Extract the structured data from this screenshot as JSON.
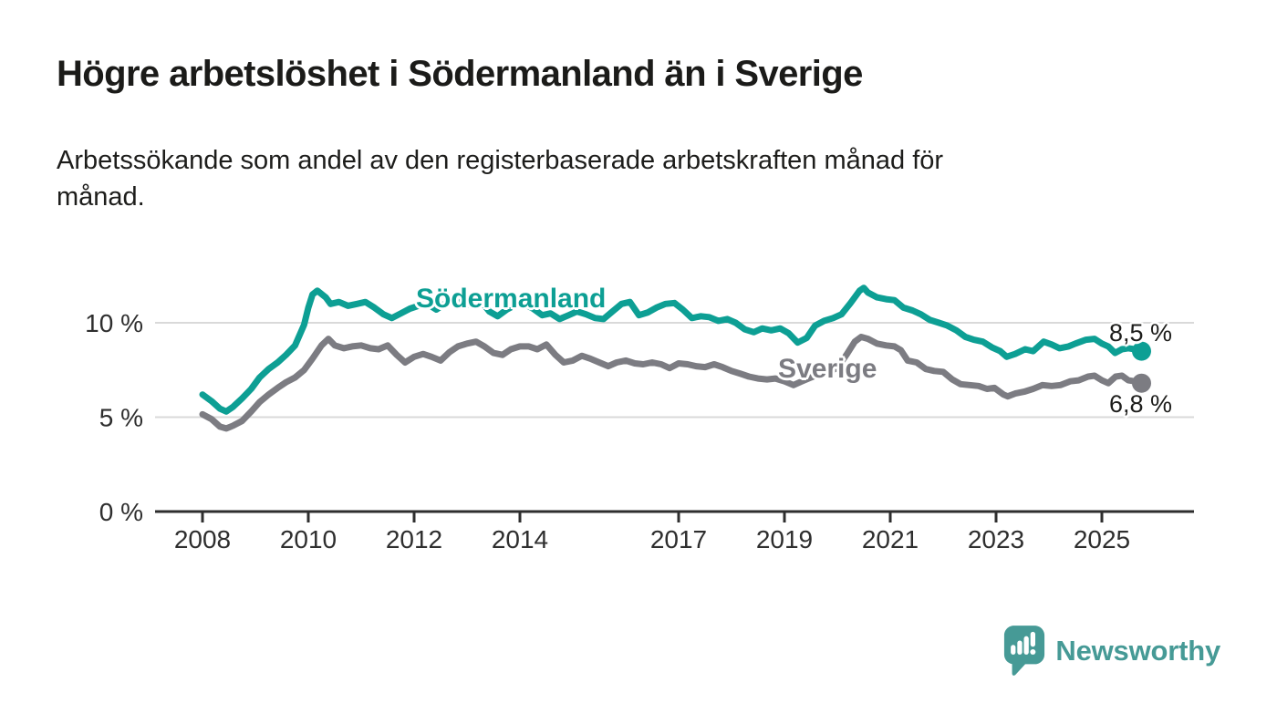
{
  "header": {
    "title": "Högre arbetslöshet i Södermanland än i Sverige",
    "subtitle_lines": [
      "Arbetssökande som andel av den registerbaserade arbetskraften månad för",
      "månad."
    ]
  },
  "footer": {
    "logo_text": "Newsworthy",
    "logo_color": "#469a96"
  },
  "chart_data": {
    "type": "line",
    "title": "Högre arbetslöshet i Södermanland än i Sverige",
    "xlabel": "",
    "ylabel": "",
    "x_unit": "year (monthly points)",
    "xlim": [
      2007.1,
      2026.8
    ],
    "ylim": [
      0,
      13.6
    ],
    "grid": "horizontal",
    "legend_position": "inline-labels",
    "grid_color": "#d9d9d9",
    "axis_color": "#2e2e2e",
    "x_ticks": [
      2008,
      2010,
      2012,
      2014,
      2017,
      2019,
      2021,
      2023,
      2025
    ],
    "y_ticks": [
      {
        "value": 0,
        "label": "0 %"
      },
      {
        "value": 5,
        "label": "5 %"
      },
      {
        "value": 10,
        "label": "10 %"
      }
    ],
    "series": [
      {
        "id": "sodermanland",
        "name": "Södermanland",
        "color": "#0d9f94",
        "end_label": "8,5 %",
        "end_value": 8.5,
        "points": [
          [
            2008.0,
            6.2
          ],
          [
            2008.17,
            5.85
          ],
          [
            2008.33,
            5.45
          ],
          [
            2008.45,
            5.3
          ],
          [
            2008.58,
            5.55
          ],
          [
            2008.75,
            6.0
          ],
          [
            2008.92,
            6.5
          ],
          [
            2009.08,
            7.1
          ],
          [
            2009.25,
            7.55
          ],
          [
            2009.42,
            7.9
          ],
          [
            2009.58,
            8.3
          ],
          [
            2009.75,
            8.8
          ],
          [
            2009.92,
            9.9
          ],
          [
            2010.0,
            10.8
          ],
          [
            2010.08,
            11.5
          ],
          [
            2010.17,
            11.7
          ],
          [
            2010.33,
            11.35
          ],
          [
            2010.42,
            11.0
          ],
          [
            2010.58,
            11.1
          ],
          [
            2010.75,
            10.9
          ],
          [
            2010.92,
            11.0
          ],
          [
            2011.08,
            11.1
          ],
          [
            2011.25,
            10.8
          ],
          [
            2011.42,
            10.45
          ],
          [
            2011.58,
            10.25
          ],
          [
            2011.75,
            10.5
          ],
          [
            2011.92,
            10.75
          ],
          [
            2012.08,
            10.9
          ],
          [
            2012.25,
            11.0
          ],
          [
            2012.42,
            10.7
          ],
          [
            2012.58,
            11.0
          ],
          [
            2012.75,
            11.15
          ],
          [
            2012.92,
            11.05
          ],
          [
            2013.08,
            10.95
          ],
          [
            2013.25,
            11.2
          ],
          [
            2013.42,
            10.6
          ],
          [
            2013.58,
            10.35
          ],
          [
            2013.75,
            10.7
          ],
          [
            2013.92,
            10.95
          ],
          [
            2014.08,
            11.0
          ],
          [
            2014.25,
            10.75
          ],
          [
            2014.42,
            10.4
          ],
          [
            2014.58,
            10.5
          ],
          [
            2014.75,
            10.2
          ],
          [
            2014.92,
            10.4
          ],
          [
            2015.08,
            10.6
          ],
          [
            2015.25,
            10.45
          ],
          [
            2015.42,
            10.25
          ],
          [
            2015.58,
            10.2
          ],
          [
            2015.75,
            10.6
          ],
          [
            2015.92,
            11.0
          ],
          [
            2016.08,
            11.1
          ],
          [
            2016.25,
            10.4
          ],
          [
            2016.42,
            10.55
          ],
          [
            2016.58,
            10.8
          ],
          [
            2016.75,
            11.0
          ],
          [
            2016.92,
            11.05
          ],
          [
            2017.08,
            10.7
          ],
          [
            2017.25,
            10.25
          ],
          [
            2017.42,
            10.35
          ],
          [
            2017.58,
            10.3
          ],
          [
            2017.75,
            10.1
          ],
          [
            2017.92,
            10.2
          ],
          [
            2018.08,
            10.0
          ],
          [
            2018.25,
            9.65
          ],
          [
            2018.42,
            9.5
          ],
          [
            2018.58,
            9.7
          ],
          [
            2018.75,
            9.6
          ],
          [
            2018.92,
            9.7
          ],
          [
            2019.08,
            9.45
          ],
          [
            2019.25,
            8.95
          ],
          [
            2019.42,
            9.2
          ],
          [
            2019.58,
            9.85
          ],
          [
            2019.75,
            10.1
          ],
          [
            2019.92,
            10.25
          ],
          [
            2020.08,
            10.45
          ],
          [
            2020.25,
            11.05
          ],
          [
            2020.42,
            11.7
          ],
          [
            2020.5,
            11.85
          ],
          [
            2020.58,
            11.6
          ],
          [
            2020.75,
            11.35
          ],
          [
            2020.92,
            11.25
          ],
          [
            2021.08,
            11.2
          ],
          [
            2021.25,
            10.8
          ],
          [
            2021.42,
            10.65
          ],
          [
            2021.58,
            10.45
          ],
          [
            2021.75,
            10.15
          ],
          [
            2021.92,
            10.0
          ],
          [
            2022.08,
            9.85
          ],
          [
            2022.25,
            9.6
          ],
          [
            2022.42,
            9.25
          ],
          [
            2022.58,
            9.1
          ],
          [
            2022.75,
            9.0
          ],
          [
            2022.92,
            8.7
          ],
          [
            2023.08,
            8.5
          ],
          [
            2023.2,
            8.2
          ],
          [
            2023.36,
            8.35
          ],
          [
            2023.55,
            8.6
          ],
          [
            2023.7,
            8.5
          ],
          [
            2023.9,
            9.0
          ],
          [
            2024.05,
            8.85
          ],
          [
            2024.2,
            8.65
          ],
          [
            2024.37,
            8.75
          ],
          [
            2024.5,
            8.9
          ],
          [
            2024.7,
            9.1
          ],
          [
            2024.86,
            9.15
          ],
          [
            2025.0,
            8.9
          ],
          [
            2025.12,
            8.75
          ],
          [
            2025.25,
            8.4
          ],
          [
            2025.38,
            8.6
          ],
          [
            2025.5,
            8.65
          ],
          [
            2025.62,
            8.6
          ],
          [
            2025.75,
            8.5
          ]
        ]
      },
      {
        "id": "sverige",
        "name": "Sverige",
        "color": "#7c7c82",
        "end_label": "6,8 %",
        "end_value": 6.8,
        "points": [
          [
            2008.0,
            5.15
          ],
          [
            2008.17,
            4.9
          ],
          [
            2008.33,
            4.5
          ],
          [
            2008.45,
            4.4
          ],
          [
            2008.58,
            4.55
          ],
          [
            2008.75,
            4.8
          ],
          [
            2008.92,
            5.3
          ],
          [
            2009.08,
            5.8
          ],
          [
            2009.25,
            6.2
          ],
          [
            2009.42,
            6.55
          ],
          [
            2009.58,
            6.85
          ],
          [
            2009.75,
            7.1
          ],
          [
            2009.92,
            7.5
          ],
          [
            2010.08,
            8.1
          ],
          [
            2010.25,
            8.8
          ],
          [
            2010.38,
            9.15
          ],
          [
            2010.5,
            8.8
          ],
          [
            2010.67,
            8.65
          ],
          [
            2010.83,
            8.75
          ],
          [
            2011.0,
            8.8
          ],
          [
            2011.17,
            8.65
          ],
          [
            2011.33,
            8.6
          ],
          [
            2011.5,
            8.8
          ],
          [
            2011.67,
            8.3
          ],
          [
            2011.83,
            7.9
          ],
          [
            2012.0,
            8.2
          ],
          [
            2012.17,
            8.35
          ],
          [
            2012.33,
            8.2
          ],
          [
            2012.5,
            8.0
          ],
          [
            2012.67,
            8.45
          ],
          [
            2012.83,
            8.75
          ],
          [
            2013.0,
            8.9
          ],
          [
            2013.17,
            9.0
          ],
          [
            2013.33,
            8.75
          ],
          [
            2013.5,
            8.4
          ],
          [
            2013.67,
            8.3
          ],
          [
            2013.83,
            8.6
          ],
          [
            2014.0,
            8.75
          ],
          [
            2014.17,
            8.75
          ],
          [
            2014.33,
            8.6
          ],
          [
            2014.5,
            8.85
          ],
          [
            2014.67,
            8.3
          ],
          [
            2014.83,
            7.9
          ],
          [
            2015.0,
            8.0
          ],
          [
            2015.17,
            8.25
          ],
          [
            2015.33,
            8.1
          ],
          [
            2015.5,
            7.9
          ],
          [
            2015.67,
            7.7
          ],
          [
            2015.83,
            7.9
          ],
          [
            2016.0,
            8.0
          ],
          [
            2016.17,
            7.85
          ],
          [
            2016.33,
            7.8
          ],
          [
            2016.5,
            7.9
          ],
          [
            2016.67,
            7.8
          ],
          [
            2016.83,
            7.6
          ],
          [
            2017.0,
            7.85
          ],
          [
            2017.17,
            7.8
          ],
          [
            2017.33,
            7.7
          ],
          [
            2017.5,
            7.65
          ],
          [
            2017.67,
            7.8
          ],
          [
            2017.83,
            7.65
          ],
          [
            2018.0,
            7.45
          ],
          [
            2018.17,
            7.3
          ],
          [
            2018.33,
            7.15
          ],
          [
            2018.5,
            7.05
          ],
          [
            2018.67,
            7.0
          ],
          [
            2018.83,
            7.05
          ],
          [
            2019.0,
            6.9
          ],
          [
            2019.17,
            6.7
          ],
          [
            2019.33,
            6.9
          ],
          [
            2019.5,
            7.1
          ],
          [
            2019.67,
            7.3
          ],
          [
            2019.83,
            7.4
          ],
          [
            2020.0,
            7.6
          ],
          [
            2020.17,
            8.3
          ],
          [
            2020.33,
            9.0
          ],
          [
            2020.45,
            9.25
          ],
          [
            2020.58,
            9.15
          ],
          [
            2020.75,
            8.9
          ],
          [
            2020.92,
            8.8
          ],
          [
            2021.08,
            8.75
          ],
          [
            2021.2,
            8.55
          ],
          [
            2021.33,
            8.0
          ],
          [
            2021.5,
            7.9
          ],
          [
            2021.67,
            7.55
          ],
          [
            2021.83,
            7.45
          ],
          [
            2022.0,
            7.4
          ],
          [
            2022.17,
            7.0
          ],
          [
            2022.33,
            6.75
          ],
          [
            2022.5,
            6.7
          ],
          [
            2022.67,
            6.65
          ],
          [
            2022.83,
            6.5
          ],
          [
            2022.97,
            6.55
          ],
          [
            2023.14,
            6.2
          ],
          [
            2023.22,
            6.1
          ],
          [
            2023.36,
            6.25
          ],
          [
            2023.53,
            6.35
          ],
          [
            2023.7,
            6.5
          ],
          [
            2023.88,
            6.7
          ],
          [
            2024.05,
            6.65
          ],
          [
            2024.22,
            6.7
          ],
          [
            2024.4,
            6.9
          ],
          [
            2024.56,
            6.95
          ],
          [
            2024.74,
            7.15
          ],
          [
            2024.86,
            7.2
          ],
          [
            2025.0,
            6.95
          ],
          [
            2025.12,
            6.8
          ],
          [
            2025.26,
            7.15
          ],
          [
            2025.38,
            7.2
          ],
          [
            2025.5,
            6.95
          ],
          [
            2025.62,
            6.9
          ],
          [
            2025.75,
            6.8
          ]
        ]
      }
    ]
  }
}
